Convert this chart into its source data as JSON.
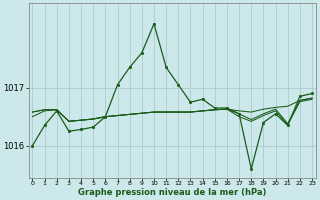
{
  "xlabel": "Graphe pression niveau de la mer (hPa)",
  "x_ticks": [
    0,
    1,
    2,
    3,
    4,
    5,
    6,
    7,
    8,
    9,
    10,
    11,
    12,
    13,
    14,
    15,
    16,
    17,
    18,
    19,
    20,
    21,
    22,
    23
  ],
  "y_ticks": [
    1016,
    1017
  ],
  "ylim": [
    1015.45,
    1018.45
  ],
  "xlim": [
    -0.3,
    23.3
  ],
  "background_color": "#cce8ea",
  "grid_color": "#aacccc",
  "line_color": "#1a5c1a",
  "series_main": [
    1016.0,
    1016.35,
    1016.6,
    1016.25,
    1016.28,
    1016.32,
    1016.5,
    1017.05,
    1017.35,
    1017.6,
    1018.1,
    1017.35,
    1017.05,
    1016.75,
    1016.8,
    1016.65,
    1016.65,
    1016.55,
    1015.6,
    1016.4,
    1016.55,
    1016.35,
    1016.85,
    1016.9
  ],
  "series_flat1": [
    1016.5,
    1016.6,
    1016.62,
    1016.42,
    1016.44,
    1016.46,
    1016.5,
    1016.52,
    1016.54,
    1016.56,
    1016.58,
    1016.58,
    1016.58,
    1016.58,
    1016.6,
    1016.62,
    1016.63,
    1016.6,
    1016.58,
    1016.63,
    1016.66,
    1016.68,
    1016.78,
    1016.82
  ],
  "series_flat2": [
    1016.58,
    1016.62,
    1016.62,
    1016.42,
    1016.44,
    1016.46,
    1016.5,
    1016.52,
    1016.54,
    1016.56,
    1016.58,
    1016.58,
    1016.58,
    1016.58,
    1016.6,
    1016.62,
    1016.63,
    1016.55,
    1016.45,
    1016.55,
    1016.63,
    1016.38,
    1016.78,
    1016.82
  ],
  "series_flat3": [
    1016.58,
    1016.62,
    1016.62,
    1016.42,
    1016.44,
    1016.46,
    1016.5,
    1016.52,
    1016.54,
    1016.56,
    1016.58,
    1016.58,
    1016.58,
    1016.58,
    1016.6,
    1016.62,
    1016.63,
    1016.5,
    1016.42,
    1016.52,
    1016.6,
    1016.36,
    1016.76,
    1016.8
  ]
}
